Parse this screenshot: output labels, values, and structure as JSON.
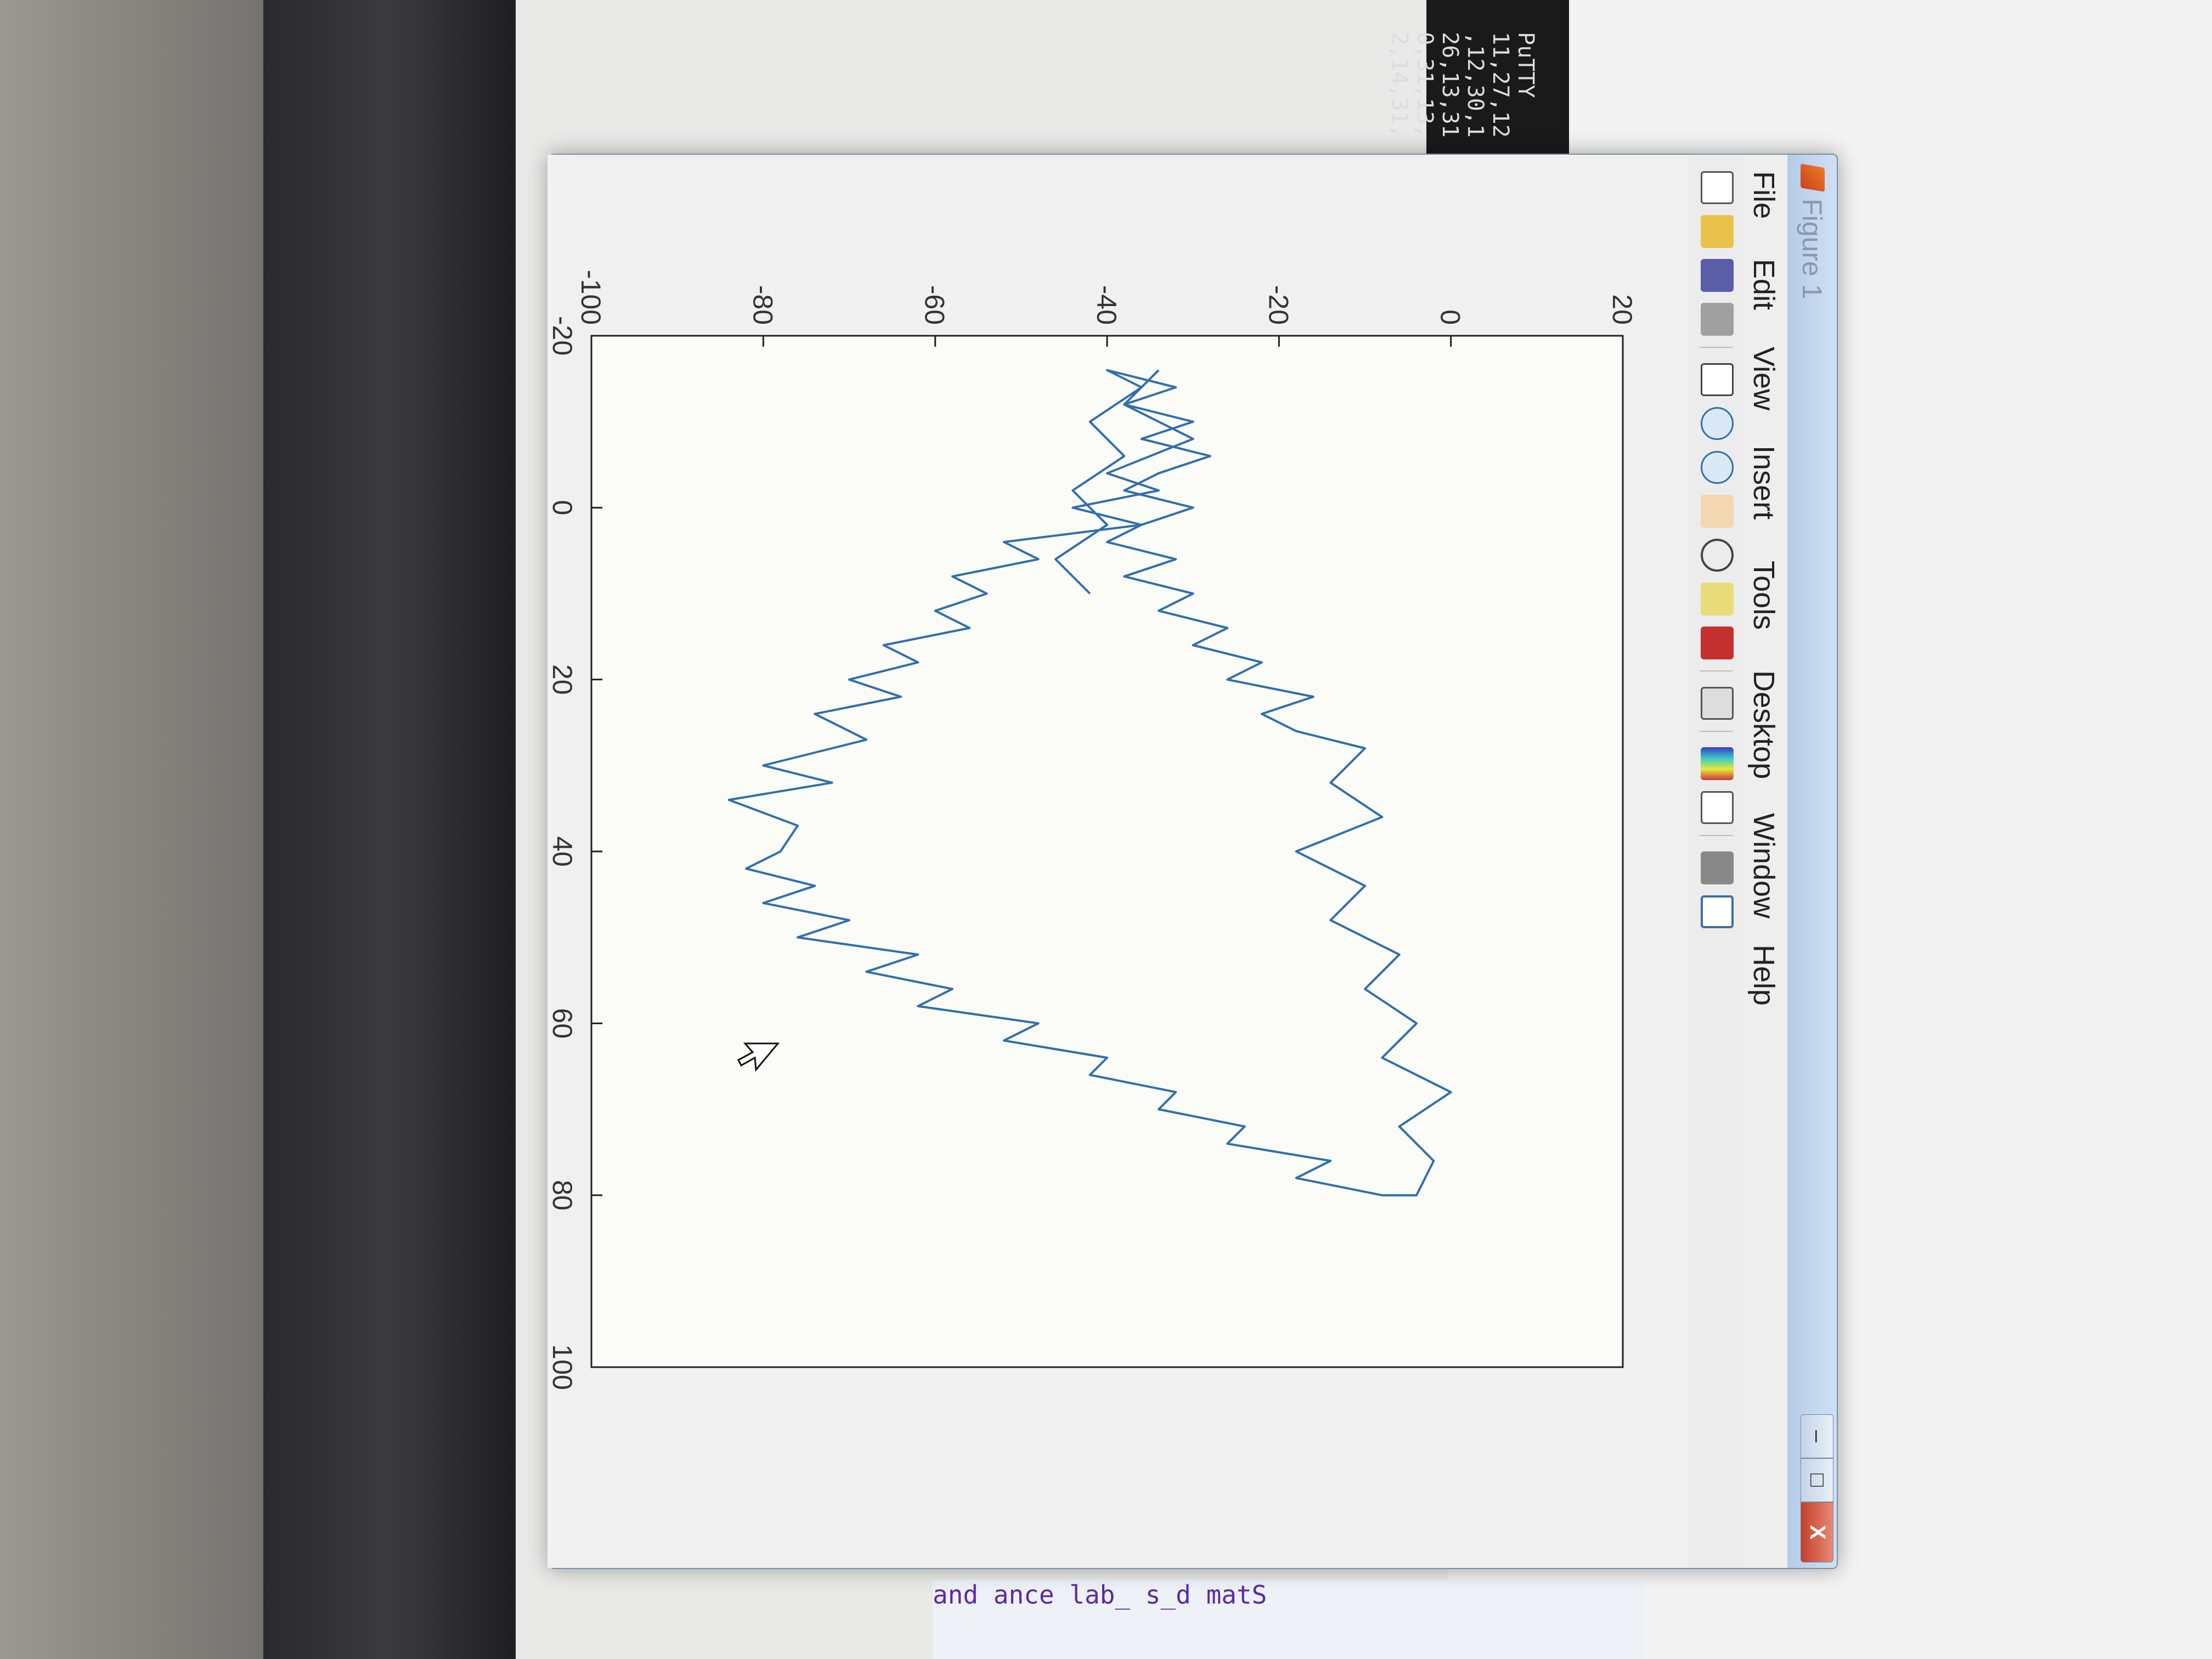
{
  "window": {
    "title": "Figure 1",
    "close_label": "X"
  },
  "menu": [
    "File",
    "Edit",
    "View",
    "Insert",
    "Tools",
    "Desktop",
    "Window",
    "Help"
  ],
  "toolbar_icons": [
    "new-figure-icon",
    "open-file-icon",
    "save-icon",
    "print-icon",
    "pointer-icon",
    "zoom-in-icon",
    "zoom-out-icon",
    "pan-hand-icon",
    "rotate-3d-icon",
    "data-cursor-icon",
    "brush-icon",
    "link-plot-icon",
    "colorbar-icon",
    "legend-icon",
    "hide-plot-tools-icon",
    "show-plot-tools-icon"
  ],
  "background": {
    "putty_title": "PuTTY",
    "putty_lines": [
      "11,27,12",
      ",12,30,1",
      "26,13,31",
      "0,31,13,",
      "2,14,31,"
    ],
    "side_labels": [
      "and",
      "ance",
      "lab_"
    ],
    "code_fragments": [
      "s_d",
      "matS"
    ]
  },
  "colors": {
    "line": "#2f6fad",
    "accent": "#c4402a"
  },
  "chart_data": {
    "type": "line",
    "xlim": [
      -20,
      100
    ],
    "ylim": [
      -100,
      20
    ],
    "xticks": [
      "-20",
      "0",
      "20",
      "40",
      "60",
      "80",
      "100"
    ],
    "yticks": [
      "-100",
      "-80",
      "-60",
      "-40",
      "-20",
      "0",
      "20"
    ],
    "series": [
      {
        "x": [
          -16,
          -12,
          -8,
          -4,
          -2,
          0,
          2,
          4,
          6,
          8,
          10,
          12,
          14,
          16,
          18,
          20,
          22,
          24,
          27,
          30,
          32,
          34,
          37,
          40,
          42,
          44,
          46,
          48,
          50,
          52,
          54,
          56,
          58,
          60,
          62,
          64,
          66,
          68,
          70,
          72,
          74,
          76,
          78,
          80,
          80,
          76,
          72,
          68,
          64,
          60,
          56,
          52,
          48,
          44,
          40,
          36,
          32,
          28,
          26,
          24,
          22,
          20,
          18,
          16,
          14,
          12,
          10,
          8,
          6,
          4,
          2,
          0,
          -2,
          -4,
          -6,
          -8,
          -10,
          -12,
          -14,
          -16,
          -14,
          -10,
          -6,
          -2,
          2,
          6,
          10
        ],
        "y": [
          -34,
          -38,
          -30,
          -40,
          -34,
          -44,
          -36,
          -52,
          -48,
          -58,
          -54,
          -60,
          -56,
          -66,
          -62,
          -70,
          -64,
          -74,
          -68,
          -80,
          -72,
          -84,
          -76,
          -78,
          -82,
          -74,
          -80,
          -70,
          -76,
          -62,
          -68,
          -58,
          -62,
          -48,
          -52,
          -40,
          -42,
          -32,
          -34,
          -24,
          -26,
          -14,
          -18,
          -8,
          -4,
          -2,
          -6,
          0,
          -8,
          -4,
          -10,
          -6,
          -14,
          -10,
          -18,
          -8,
          -14,
          -10,
          -18,
          -22,
          -16,
          -26,
          -22,
          -30,
          -26,
          -34,
          -30,
          -38,
          -32,
          -40,
          -36,
          -30,
          -38,
          -34,
          -28,
          -36,
          -30,
          -38,
          -32,
          -40,
          -36,
          -42,
          -38,
          -44,
          -40,
          -46,
          -42
        ]
      }
    ]
  }
}
